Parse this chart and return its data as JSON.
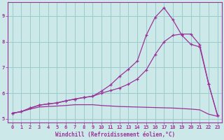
{
  "xlabel": "Windchill (Refroidissement éolien,°C)",
  "background_color": "#cce8e8",
  "grid_color": "#99cccc",
  "line_color": "#993399",
  "spine_color": "#993399",
  "xlim": [
    -0.5,
    23.5
  ],
  "ylim": [
    4.85,
    9.55
  ],
  "xticks": [
    0,
    1,
    2,
    3,
    4,
    5,
    6,
    7,
    8,
    9,
    10,
    11,
    12,
    13,
    14,
    15,
    16,
    17,
    18,
    19,
    20,
    21,
    22,
    23
  ],
  "yticks": [
    5,
    6,
    7,
    8,
    9
  ],
  "line_upper_x": [
    0,
    1,
    2,
    3,
    4,
    5,
    6,
    7,
    8,
    9,
    10,
    11,
    12,
    13,
    14,
    15,
    16,
    17,
    18,
    19,
    20,
    21,
    22,
    23
  ],
  "line_upper_y": [
    5.22,
    5.28,
    5.42,
    5.53,
    5.58,
    5.62,
    5.7,
    5.77,
    5.83,
    5.88,
    6.08,
    6.32,
    6.65,
    6.93,
    7.25,
    8.25,
    8.95,
    9.32,
    8.85,
    8.25,
    7.9,
    7.8,
    6.35,
    5.12
  ],
  "line_mid_x": [
    0,
    1,
    2,
    3,
    4,
    5,
    6,
    7,
    8,
    9,
    10,
    11,
    12,
    13,
    14,
    15,
    16,
    17,
    18,
    19,
    20,
    21,
    22,
    23
  ],
  "line_mid_y": [
    5.22,
    5.28,
    5.42,
    5.53,
    5.58,
    5.62,
    5.7,
    5.77,
    5.83,
    5.88,
    6.0,
    6.1,
    6.2,
    6.35,
    6.55,
    6.9,
    7.5,
    8.0,
    8.25,
    8.3,
    8.3,
    7.88,
    6.35,
    5.12
  ],
  "line_flat_x": [
    0,
    1,
    2,
    3,
    4,
    5,
    6,
    7,
    8,
    9,
    10,
    11,
    12,
    13,
    14,
    15,
    16,
    17,
    18,
    19,
    20,
    21,
    22,
    23
  ],
  "line_flat_y": [
    5.22,
    5.28,
    5.38,
    5.46,
    5.48,
    5.5,
    5.52,
    5.55,
    5.55,
    5.55,
    5.52,
    5.5,
    5.48,
    5.47,
    5.46,
    5.45,
    5.44,
    5.43,
    5.42,
    5.4,
    5.38,
    5.35,
    5.18,
    5.1
  ]
}
